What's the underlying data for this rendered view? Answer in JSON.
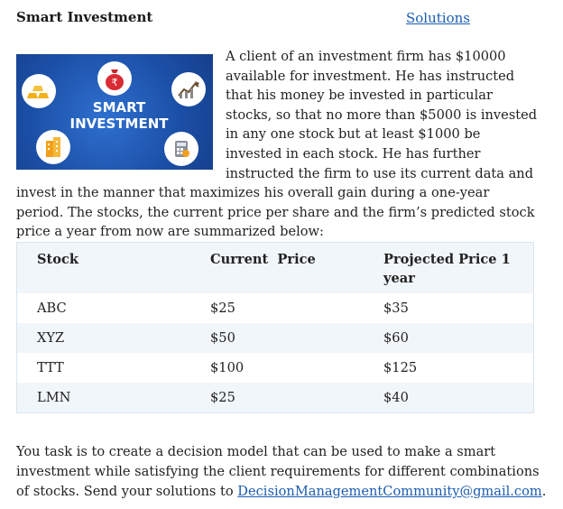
{
  "header": {
    "title": "Smart Investment",
    "solutions_link": "Solutions"
  },
  "banner": {
    "line1": "SMART",
    "line2": "INVESTMENT",
    "background_color": "#1e56b0",
    "icons": [
      "gold-bars-icon",
      "money-bag-icon",
      "growth-chart-icon",
      "building-icon",
      "calculator-icon"
    ]
  },
  "intro": {
    "text": "A client of an investment firm has $10000 available for investment. He has instructed that his money be invested in particular stocks, so that no more than $5000 is invested in any one stock but at least $1000 be invested in each stock. He has further instructed the firm to use its current data and invest in the manner that maximizes his overall gain during a one-year period. The stocks, the current price per share and the firm’s predicted stock price a year from now are summarized below:"
  },
  "table": {
    "headers": [
      "Stock",
      "Current  Price",
      "Projected Price 1 year"
    ],
    "rows": [
      [
        "ABC",
        "$25",
        "$35"
      ],
      [
        "XYZ",
        "$50",
        "$60"
      ],
      [
        "TTT",
        "$100",
        "$125"
      ],
      [
        "LMN",
        "$25",
        "$40"
      ]
    ]
  },
  "task": {
    "text": "You task is to create a decision model that can be used to make a smart investment while satisfying the client requirements for different combinations of stocks. Send your solutions to ",
    "email": "DecisionManagementCommunity@gmail.com",
    "end": "."
  },
  "colors": {
    "link": "#1a5cb0",
    "table_stripe": "#f1f6fa"
  }
}
